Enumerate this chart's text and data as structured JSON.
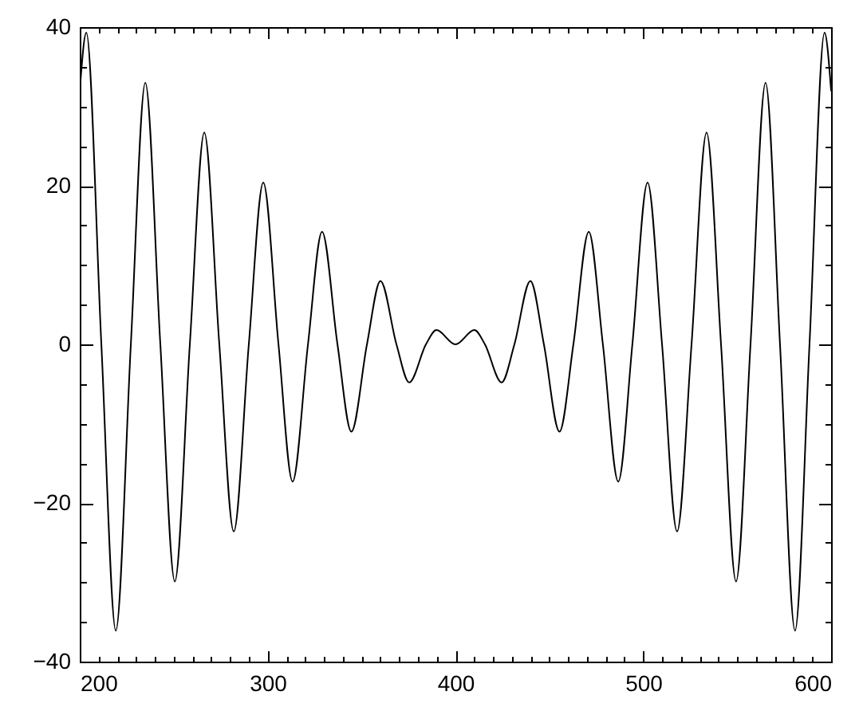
{
  "chart_data": {
    "type": "line",
    "color": "#000000",
    "line_style": "solid",
    "x": [
      200,
      203.5,
      211.5,
      219.2,
      227.2,
      234.9,
      242.9,
      250.6,
      258.6,
      266.3,
      274.3,
      282.0,
      290.0,
      297.7,
      305.8,
      313.3,
      321.5,
      329.0,
      337.2,
      344.6,
      352.9,
      360.1,
      368.6,
      375.4,
      384.3,
      389.9,
      400,
      410.1,
      415.7,
      424.6,
      431.4,
      439.9,
      447.1,
      455.4,
      462.8,
      471.0,
      478.5,
      486.7,
      494.2,
      502.3,
      510.0,
      518.0,
      525.7,
      533.7,
      541.4,
      549.4,
      557.1,
      565.1,
      572.8,
      580.8,
      588.5,
      596.5,
      600
    ],
    "values": [
      32,
      39.3,
      0,
      -36.1,
      0,
      33.0,
      0,
      -29.9,
      0,
      26.7,
      0,
      -23.6,
      0,
      20.4,
      0,
      -17.3,
      0,
      14.2,
      0,
      -11.0,
      0,
      8.0,
      0,
      -4.8,
      0,
      1.8,
      0,
      1.8,
      0,
      -4.8,
      0,
      8.0,
      0,
      -11.0,
      0,
      14.2,
      0,
      -17.3,
      0,
      20.4,
      0,
      -23.6,
      0,
      26.7,
      0,
      -29.9,
      0,
      33.0,
      0,
      -36.1,
      0,
      39.3,
      32
    ],
    "xlim": [
      200,
      600
    ],
    "ylim": [
      -40,
      40
    ],
    "xticks": [
      200,
      {
        "value": 210,
        "label": null
      },
      {
        "value": 220,
        "label": null
      },
      {
        "value": 230,
        "label": null
      },
      {
        "value": 240,
        "label": null
      },
      {
        "value": 250,
        "label": null
      },
      {
        "value": 260,
        "label": null
      },
      {
        "value": 270,
        "label": null
      },
      {
        "value": 280,
        "label": null
      },
      {
        "value": 290,
        "label": null
      },
      300,
      {
        "value": 310,
        "label": null
      },
      {
        "value": 320,
        "label": null
      },
      {
        "value": 330,
        "label": null
      },
      {
        "value": 340,
        "label": null
      },
      {
        "value": 350,
        "label": null
      },
      {
        "value": 360,
        "label": null
      },
      {
        "value": 370,
        "label": null
      },
      {
        "value": 380,
        "label": null
      },
      {
        "value": 390,
        "label": null
      },
      400,
      {
        "value": 410,
        "label": null
      },
      {
        "value": 420,
        "label": null
      },
      {
        "value": 430,
        "label": null
      },
      {
        "value": 440,
        "label": null
      },
      {
        "value": 450,
        "label": null
      },
      {
        "value": 460,
        "label": null
      },
      {
        "value": 470,
        "label": null
      },
      {
        "value": 480,
        "label": null
      },
      {
        "value": 490,
        "label": null
      },
      500,
      {
        "value": 510,
        "label": null
      },
      {
        "value": 520,
        "label": null
      },
      {
        "value": 530,
        "label": null
      },
      {
        "value": 540,
        "label": null
      },
      {
        "value": 550,
        "label": null
      },
      {
        "value": 560,
        "label": null
      },
      {
        "value": 570,
        "label": null
      },
      {
        "value": 580,
        "label": null
      },
      {
        "value": 590,
        "label": null
      },
      600
    ],
    "yticks": [
      -40,
      {
        "value": -35,
        "label": null
      },
      {
        "value": -30,
        "label": null
      },
      {
        "value": -25,
        "label": null
      },
      -20,
      {
        "value": -15,
        "label": null
      },
      {
        "value": -10,
        "label": null
      },
      {
        "value": -5,
        "label": null
      },
      0,
      {
        "value": 5,
        "label": null
      },
      {
        "value": 10,
        "label": null
      },
      {
        "value": 15,
        "label": null
      },
      20,
      {
        "value": 25,
        "label": null
      },
      {
        "value": 30,
        "label": null
      },
      {
        "value": 35,
        "label": null
      },
      40
    ]
  }
}
